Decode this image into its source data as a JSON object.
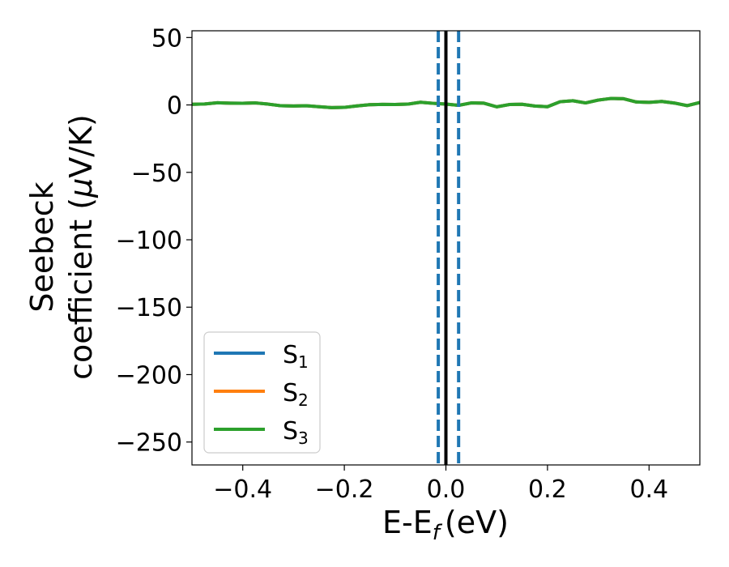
{
  "chart_data": {
    "type": "line",
    "title": "",
    "xlabel": "E-E",
    "xlabel_subscript": "f",
    "xlabel_unit": "(eV)",
    "ylabel_line1": "Seebeck",
    "ylabel_line2_prefix": "coefficient  (",
    "ylabel_mu": "μ",
    "ylabel_line2_suffix": "V/K)",
    "xlim": [
      -0.5,
      0.5
    ],
    "ylim": [
      -267,
      55
    ],
    "xticks": [
      -0.4,
      -0.2,
      0.0,
      0.2,
      0.4
    ],
    "xtick_labels": [
      "−0.4",
      "−0.2",
      "0.0",
      "0.2",
      "0.4"
    ],
    "yticks": [
      50,
      0,
      -50,
      -100,
      -150,
      -200,
      -250
    ],
    "ytick_labels": [
      "50",
      "0",
      "−50",
      "−100",
      "−150",
      "−200",
      "−250"
    ],
    "grid": false,
    "legend_position": "lower-left",
    "vlines": [
      {
        "x": -0.015,
        "style": "dashed",
        "color": "#1f77b4"
      },
      {
        "x": 0.025,
        "style": "dashed",
        "color": "#1f77b4"
      },
      {
        "x": 0.0,
        "style": "solid",
        "color": "#000000"
      }
    ],
    "x": [
      -0.5,
      -0.475,
      -0.45,
      -0.425,
      -0.4,
      -0.375,
      -0.35,
      -0.325,
      -0.3,
      -0.275,
      -0.25,
      -0.225,
      -0.2,
      -0.175,
      -0.15,
      -0.125,
      -0.1,
      -0.075,
      -0.05,
      -0.025,
      0.0,
      0.025,
      0.05,
      0.075,
      0.1,
      0.125,
      0.15,
      0.175,
      0.2,
      0.225,
      0.25,
      0.275,
      0.3,
      0.325,
      0.35,
      0.375,
      0.4,
      0.425,
      0.45,
      0.475,
      0.5
    ],
    "series": [
      {
        "name": "S",
        "sub": "1",
        "color": "#1f77b4",
        "values": [
          0.5,
          0.7,
          1.6,
          1.3,
          1.2,
          1.5,
          0.6,
          -0.6,
          -0.8,
          -0.6,
          -1.3,
          -2.0,
          -1.8,
          -0.7,
          0.2,
          0.4,
          0.3,
          0.6,
          2.0,
          1.2,
          0.6,
          -0.3,
          1.5,
          1.3,
          -1.4,
          0.3,
          0.5,
          -0.8,
          -1.3,
          2.4,
          3.1,
          1.5,
          3.6,
          4.8,
          4.6,
          2.2,
          1.9,
          2.6,
          1.4,
          -0.5,
          1.8
        ]
      },
      {
        "name": "S",
        "sub": "2",
        "color": "#ff7f0e",
        "values": [
          0.5,
          0.7,
          1.6,
          1.3,
          1.2,
          1.5,
          0.6,
          -0.6,
          -0.8,
          -0.6,
          -1.3,
          -2.0,
          -1.8,
          -0.7,
          0.2,
          0.4,
          0.3,
          0.6,
          2.0,
          1.2,
          0.6,
          -0.3,
          1.5,
          1.3,
          -1.4,
          0.3,
          0.5,
          -0.8,
          -1.3,
          2.4,
          3.1,
          1.5,
          3.6,
          4.8,
          4.6,
          2.2,
          1.9,
          2.6,
          1.4,
          -0.5,
          1.8
        ]
      },
      {
        "name": "S",
        "sub": "3",
        "color": "#2ca02c",
        "values": [
          0.5,
          0.7,
          1.6,
          1.3,
          1.2,
          1.5,
          0.6,
          -0.6,
          -0.8,
          -0.6,
          -1.3,
          -2.0,
          -1.8,
          -0.7,
          0.2,
          0.4,
          0.3,
          0.6,
          2.0,
          1.2,
          0.6,
          -0.3,
          1.5,
          1.3,
          -1.4,
          0.3,
          0.5,
          -0.8,
          -1.3,
          2.4,
          3.1,
          1.5,
          3.6,
          4.8,
          4.6,
          2.2,
          1.9,
          2.6,
          1.4,
          -0.5,
          1.8
        ]
      }
    ]
  }
}
